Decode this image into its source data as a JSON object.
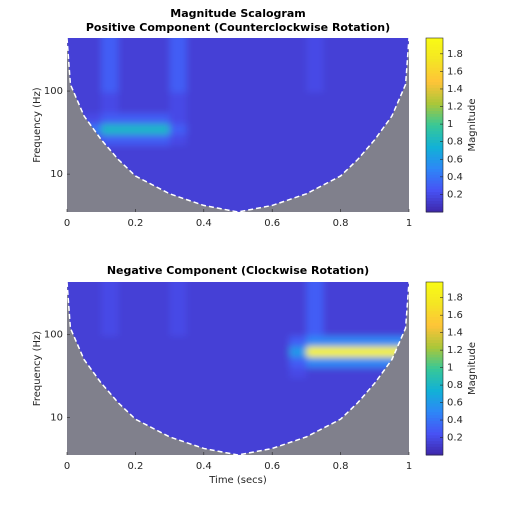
{
  "chart_data": [
    {
      "type": "heatmap",
      "title": "Magnitude Scalogram",
      "subtitle": "Positive Component (Counterclockwise Rotation)",
      "ylabel": "Frequency (Hz)",
      "colormap": "parula",
      "yscale": "log",
      "x": [
        0.025,
        0.075,
        0.125,
        0.175,
        0.225,
        0.275,
        0.325,
        0.375,
        0.425,
        0.475,
        0.525,
        0.575,
        0.625,
        0.675,
        0.725,
        0.775,
        0.825,
        0.875,
        0.925,
        0.975
      ],
      "y": [
        4.5,
        6,
        8,
        10.8,
        14.5,
        19.5,
        26,
        35,
        47,
        63,
        84,
        113,
        151,
        203,
        272,
        365
      ],
      "values": [
        [
          0.15,
          0.15,
          0.15,
          0.15,
          0.15,
          0.15,
          0.15,
          0.15,
          0.15,
          0.15,
          0.15,
          0.15,
          0.15,
          0.15,
          0.15,
          0.15,
          0.15,
          0.15,
          0.15,
          0.15
        ],
        [
          0.15,
          0.15,
          0.15,
          0.15,
          0.15,
          0.15,
          0.15,
          0.15,
          0.15,
          0.15,
          0.15,
          0.15,
          0.15,
          0.15,
          0.15,
          0.15,
          0.15,
          0.15,
          0.15,
          0.15
        ],
        [
          0.15,
          0.15,
          0.15,
          0.15,
          0.15,
          0.15,
          0.15,
          0.15,
          0.15,
          0.15,
          0.15,
          0.15,
          0.15,
          0.15,
          0.15,
          0.15,
          0.15,
          0.15,
          0.15,
          0.15
        ],
        [
          0.15,
          0.15,
          0.15,
          0.15,
          0.15,
          0.15,
          0.15,
          0.15,
          0.15,
          0.15,
          0.15,
          0.15,
          0.15,
          0.15,
          0.15,
          0.15,
          0.15,
          0.15,
          0.15,
          0.15
        ],
        [
          0.15,
          0.15,
          0.15,
          0.15,
          0.15,
          0.15,
          0.15,
          0.15,
          0.15,
          0.15,
          0.15,
          0.15,
          0.15,
          0.15,
          0.15,
          0.15,
          0.15,
          0.15,
          0.15,
          0.15
        ],
        [
          0.15,
          0.15,
          0.15,
          0.15,
          0.15,
          0.15,
          0.15,
          0.15,
          0.15,
          0.15,
          0.15,
          0.15,
          0.15,
          0.15,
          0.15,
          0.15,
          0.15,
          0.15,
          0.15,
          0.15
        ],
        [
          0.15,
          0.2,
          0.3,
          0.3,
          0.3,
          0.3,
          0.2,
          0.15,
          0.15,
          0.15,
          0.15,
          0.15,
          0.15,
          0.15,
          0.15,
          0.15,
          0.15,
          0.15,
          0.15,
          0.15
        ],
        [
          0.15,
          0.4,
          0.8,
          0.8,
          0.8,
          0.8,
          0.3,
          0.15,
          0.15,
          0.15,
          0.15,
          0.15,
          0.15,
          0.15,
          0.15,
          0.15,
          0.15,
          0.15,
          0.15,
          0.15
        ],
        [
          0.15,
          0.2,
          0.3,
          0.3,
          0.3,
          0.3,
          0.2,
          0.15,
          0.15,
          0.15,
          0.15,
          0.15,
          0.15,
          0.15,
          0.15,
          0.15,
          0.15,
          0.15,
          0.15,
          0.15
        ],
        [
          0.15,
          0.15,
          0.2,
          0.15,
          0.15,
          0.15,
          0.2,
          0.15,
          0.15,
          0.15,
          0.15,
          0.15,
          0.15,
          0.15,
          0.15,
          0.15,
          0.15,
          0.15,
          0.15,
          0.15
        ],
        [
          0.15,
          0.15,
          0.2,
          0.15,
          0.15,
          0.15,
          0.2,
          0.15,
          0.15,
          0.15,
          0.15,
          0.15,
          0.15,
          0.15,
          0.15,
          0.15,
          0.15,
          0.15,
          0.15,
          0.15
        ],
        [
          0.15,
          0.15,
          0.3,
          0.15,
          0.15,
          0.15,
          0.3,
          0.15,
          0.15,
          0.15,
          0.15,
          0.15,
          0.15,
          0.15,
          0.2,
          0.15,
          0.15,
          0.15,
          0.15,
          0.15
        ],
        [
          0.15,
          0.15,
          0.3,
          0.15,
          0.15,
          0.15,
          0.3,
          0.15,
          0.15,
          0.15,
          0.15,
          0.15,
          0.15,
          0.15,
          0.2,
          0.15,
          0.15,
          0.15,
          0.15,
          0.15
        ],
        [
          0.15,
          0.15,
          0.3,
          0.15,
          0.15,
          0.15,
          0.3,
          0.15,
          0.15,
          0.15,
          0.15,
          0.15,
          0.15,
          0.15,
          0.2,
          0.15,
          0.15,
          0.15,
          0.15,
          0.15
        ],
        [
          0.15,
          0.15,
          0.3,
          0.15,
          0.15,
          0.15,
          0.3,
          0.15,
          0.15,
          0.15,
          0.15,
          0.15,
          0.15,
          0.15,
          0.2,
          0.15,
          0.15,
          0.15,
          0.15,
          0.15
        ],
        [
          0.15,
          0.15,
          0.3,
          0.15,
          0.15,
          0.15,
          0.3,
          0.15,
          0.15,
          0.15,
          0.15,
          0.15,
          0.15,
          0.15,
          0.2,
          0.15,
          0.15,
          0.15,
          0.15,
          0.15
        ]
      ],
      "coi": {
        "x": [
          0,
          0.01,
          0.05,
          0.1,
          0.15,
          0.2,
          0.3,
          0.4,
          0.5,
          0.6,
          0.7,
          0.8,
          0.85,
          0.9,
          0.95,
          0.99,
          1
        ],
        "values": [
          435,
          120,
          50,
          26,
          15,
          9.5,
          5.8,
          4.2,
          3.5,
          4.2,
          5.8,
          9.5,
          15,
          26,
          50,
          120,
          435
        ]
      },
      "xlim": [
        0,
        1
      ],
      "xticks": [
        0,
        0.2,
        0.4,
        0.6,
        0.8,
        1
      ],
      "ylim": [
        3.5,
        435
      ],
      "yticks": [
        10,
        100
      ],
      "colorbar": {
        "label": "Magnitude",
        "lim": [
          0,
          1.98
        ],
        "ticks": [
          0.2,
          0.4,
          0.6,
          0.8,
          1,
          1.2,
          1.4,
          1.6,
          1.8
        ]
      }
    },
    {
      "type": "heatmap",
      "title": "Negative Component (Clockwise Rotation)",
      "xlabel": "Time (secs)",
      "ylabel": "Frequency (Hz)",
      "colormap": "parula",
      "yscale": "log",
      "x": [
        0.025,
        0.075,
        0.125,
        0.175,
        0.225,
        0.275,
        0.325,
        0.375,
        0.425,
        0.475,
        0.525,
        0.575,
        0.625,
        0.675,
        0.725,
        0.775,
        0.825,
        0.875,
        0.925,
        0.975
      ],
      "y": [
        4.5,
        6,
        8,
        10.8,
        14.5,
        19.5,
        26,
        35,
        47,
        63,
        84,
        113,
        151,
        203,
        272,
        365
      ],
      "values": [
        [
          0.15,
          0.15,
          0.15,
          0.15,
          0.15,
          0.15,
          0.15,
          0.15,
          0.15,
          0.15,
          0.15,
          0.15,
          0.15,
          0.15,
          0.15,
          0.15,
          0.15,
          0.15,
          0.15,
          0.15
        ],
        [
          0.15,
          0.15,
          0.15,
          0.15,
          0.15,
          0.15,
          0.15,
          0.15,
          0.15,
          0.15,
          0.15,
          0.15,
          0.15,
          0.15,
          0.15,
          0.15,
          0.15,
          0.15,
          0.15,
          0.15
        ],
        [
          0.15,
          0.15,
          0.15,
          0.15,
          0.15,
          0.15,
          0.15,
          0.15,
          0.15,
          0.15,
          0.15,
          0.15,
          0.15,
          0.15,
          0.15,
          0.15,
          0.15,
          0.15,
          0.15,
          0.15
        ],
        [
          0.15,
          0.15,
          0.15,
          0.15,
          0.15,
          0.15,
          0.15,
          0.15,
          0.15,
          0.15,
          0.15,
          0.15,
          0.15,
          0.15,
          0.15,
          0.15,
          0.15,
          0.15,
          0.15,
          0.15
        ],
        [
          0.15,
          0.15,
          0.15,
          0.15,
          0.15,
          0.15,
          0.15,
          0.15,
          0.15,
          0.15,
          0.15,
          0.15,
          0.15,
          0.15,
          0.15,
          0.15,
          0.15,
          0.15,
          0.15,
          0.15
        ],
        [
          0.15,
          0.15,
          0.15,
          0.15,
          0.15,
          0.15,
          0.15,
          0.15,
          0.15,
          0.15,
          0.15,
          0.15,
          0.15,
          0.15,
          0.15,
          0.15,
          0.15,
          0.15,
          0.15,
          0.15
        ],
        [
          0.15,
          0.15,
          0.15,
          0.15,
          0.15,
          0.15,
          0.15,
          0.15,
          0.15,
          0.15,
          0.15,
          0.15,
          0.15,
          0.15,
          0.15,
          0.15,
          0.15,
          0.15,
          0.15,
          0.15
        ],
        [
          0.15,
          0.15,
          0.15,
          0.15,
          0.15,
          0.15,
          0.15,
          0.15,
          0.15,
          0.15,
          0.15,
          0.15,
          0.15,
          0.2,
          0.15,
          0.15,
          0.15,
          0.15,
          0.15,
          0.15
        ],
        [
          0.15,
          0.15,
          0.15,
          0.15,
          0.15,
          0.15,
          0.15,
          0.15,
          0.15,
          0.15,
          0.15,
          0.15,
          0.15,
          0.3,
          0.5,
          0.5,
          0.5,
          0.5,
          0.5,
          0.5
        ],
        [
          0.15,
          0.15,
          0.15,
          0.15,
          0.15,
          0.15,
          0.15,
          0.15,
          0.15,
          0.15,
          0.15,
          0.15,
          0.15,
          0.6,
          1.9,
          1.9,
          1.9,
          1.9,
          1.9,
          1.9
        ],
        [
          0.15,
          0.15,
          0.15,
          0.15,
          0.15,
          0.15,
          0.15,
          0.15,
          0.15,
          0.15,
          0.15,
          0.15,
          0.15,
          0.3,
          0.5,
          0.5,
          0.5,
          0.5,
          0.5,
          0.5
        ],
        [
          0.15,
          0.15,
          0.2,
          0.15,
          0.15,
          0.15,
          0.2,
          0.15,
          0.15,
          0.15,
          0.15,
          0.15,
          0.15,
          0.15,
          0.3,
          0.15,
          0.15,
          0.15,
          0.15,
          0.15
        ],
        [
          0.15,
          0.15,
          0.2,
          0.15,
          0.15,
          0.15,
          0.2,
          0.15,
          0.15,
          0.15,
          0.15,
          0.15,
          0.15,
          0.15,
          0.3,
          0.15,
          0.15,
          0.15,
          0.15,
          0.15
        ],
        [
          0.15,
          0.15,
          0.2,
          0.15,
          0.15,
          0.15,
          0.2,
          0.15,
          0.15,
          0.15,
          0.15,
          0.15,
          0.15,
          0.15,
          0.3,
          0.15,
          0.15,
          0.15,
          0.15,
          0.15
        ],
        [
          0.15,
          0.15,
          0.2,
          0.15,
          0.15,
          0.15,
          0.2,
          0.15,
          0.15,
          0.15,
          0.15,
          0.15,
          0.15,
          0.15,
          0.3,
          0.15,
          0.15,
          0.15,
          0.15,
          0.15
        ],
        [
          0.15,
          0.15,
          0.2,
          0.15,
          0.15,
          0.15,
          0.2,
          0.15,
          0.15,
          0.15,
          0.15,
          0.15,
          0.15,
          0.15,
          0.3,
          0.15,
          0.15,
          0.15,
          0.15,
          0.15
        ]
      ],
      "coi": {
        "x": [
          0,
          0.01,
          0.05,
          0.1,
          0.15,
          0.2,
          0.3,
          0.4,
          0.5,
          0.6,
          0.7,
          0.8,
          0.85,
          0.9,
          0.95,
          0.99,
          1
        ],
        "values": [
          435,
          120,
          50,
          26,
          15,
          9.5,
          5.8,
          4.2,
          3.5,
          4.2,
          5.8,
          9.5,
          15,
          26,
          50,
          120,
          435
        ]
      },
      "xlim": [
        0,
        1
      ],
      "xticks": [
        0,
        0.2,
        0.4,
        0.6,
        0.8,
        1
      ],
      "ylim": [
        3.5,
        435
      ],
      "yticks": [
        10,
        100
      ],
      "colorbar": {
        "label": "Magnitude",
        "lim": [
          0,
          1.98
        ],
        "ticks": [
          0.2,
          0.4,
          0.6,
          0.8,
          1,
          1.2,
          1.4,
          1.6,
          1.8
        ]
      }
    }
  ]
}
